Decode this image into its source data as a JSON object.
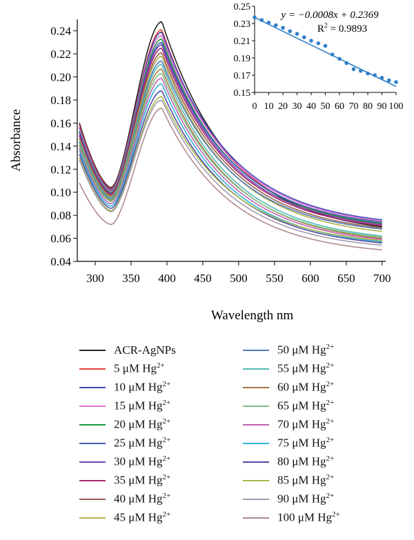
{
  "chart_data": [
    {
      "type": "line",
      "title": "",
      "xlabel": "Wavelength nm",
      "ylabel": "Absorbance",
      "xlim": [
        275,
        705
      ],
      "ylim": [
        0.04,
        0.25
      ],
      "x_ticks": [
        300,
        350,
        400,
        450,
        500,
        550,
        600,
        650,
        700
      ],
      "y_ticks": [
        0.04,
        0.06,
        0.08,
        0.1,
        0.12,
        0.14,
        0.16,
        0.18,
        0.2,
        0.22,
        0.24
      ],
      "grid": false,
      "legend_position": "bottom",
      "series": [
        {
          "name": "ACR-AgNPs",
          "color": "#222222",
          "start": 0.16,
          "min": 0.104,
          "peak": 0.248,
          "end": 0.07
        },
        {
          "name": "5 μM Hg2+",
          "color": "#e8413a",
          "start": 0.158,
          "min": 0.103,
          "peak": 0.241,
          "end": 0.072
        },
        {
          "name": "10 μM Hg2+",
          "color": "#3f48b5",
          "start": 0.156,
          "min": 0.102,
          "peak": 0.239,
          "end": 0.076
        },
        {
          "name": "15 μM Hg2+",
          "color": "#e36fd2",
          "start": 0.155,
          "min": 0.101,
          "peak": 0.236,
          "end": 0.075
        },
        {
          "name": "20 μM Hg2+",
          "color": "#1f9a3b",
          "start": 0.153,
          "min": 0.1,
          "peak": 0.233,
          "end": 0.073
        },
        {
          "name": "25 μM Hg2+",
          "color": "#3b5bb5",
          "start": 0.152,
          "min": 0.099,
          "peak": 0.23,
          "end": 0.074
        },
        {
          "name": "30 μM Hg2+",
          "color": "#7b3fb3",
          "start": 0.15,
          "min": 0.099,
          "peak": 0.228,
          "end": 0.072
        },
        {
          "name": "35 μM Hg2+",
          "color": "#a0286a",
          "start": 0.149,
          "min": 0.098,
          "peak": 0.225,
          "end": 0.071
        },
        {
          "name": "40 μM Hg2+",
          "color": "#9a5a4a",
          "start": 0.147,
          "min": 0.097,
          "peak": 0.221,
          "end": 0.069
        },
        {
          "name": "45 μM Hg2+",
          "color": "#b3b04a",
          "start": 0.146,
          "min": 0.096,
          "peak": 0.218,
          "end": 0.066
        },
        {
          "name": "50 μM Hg2+",
          "color": "#4a7ab8",
          "start": 0.144,
          "min": 0.095,
          "peak": 0.214,
          "end": 0.068
        },
        {
          "name": "55 μM Hg2+",
          "color": "#4fb8b3",
          "start": 0.143,
          "min": 0.094,
          "peak": 0.211,
          "end": 0.062
        },
        {
          "name": "60 μM Hg2+",
          "color": "#a6783f",
          "start": 0.141,
          "min": 0.093,
          "peak": 0.207,
          "end": 0.06
        },
        {
          "name": "65 μM Hg2+",
          "color": "#7fc08a",
          "start": 0.14,
          "min": 0.092,
          "peak": 0.203,
          "end": 0.061
        },
        {
          "name": "70 μM Hg2+",
          "color": "#c060b0",
          "start": 0.138,
          "min": 0.09,
          "peak": 0.199,
          "end": 0.059
        },
        {
          "name": "75 μM Hg2+",
          "color": "#2fb0d8",
          "start": 0.136,
          "min": 0.088,
          "peak": 0.194,
          "end": 0.057
        },
        {
          "name": "80 μM Hg2+",
          "color": "#4d4aa8",
          "start": 0.133,
          "min": 0.086,
          "peak": 0.188,
          "end": 0.056
        },
        {
          "name": "85 μM Hg2+",
          "color": "#a8b84a",
          "start": 0.13,
          "min": 0.084,
          "peak": 0.183,
          "end": 0.058
        },
        {
          "name": "90 μM Hg2+",
          "color": "#a39ab0",
          "start": 0.128,
          "min": 0.083,
          "peak": 0.18,
          "end": 0.054
        },
        {
          "name": "100 μM Hg2+",
          "color": "#b08a8a",
          "start": 0.108,
          "min": 0.072,
          "peak": 0.173,
          "end": 0.05
        }
      ]
    },
    {
      "type": "scatter",
      "inset": true,
      "xlabel": "",
      "ylabel": "",
      "xlim": [
        0,
        100
      ],
      "ylim": [
        0.15,
        0.25
      ],
      "x_ticks": [
        0,
        10,
        20,
        30,
        40,
        50,
        60,
        70,
        80,
        90,
        100
      ],
      "y_ticks": [
        0.15,
        0.17,
        0.19,
        0.21,
        0.23,
        0.25
      ],
      "grid": false,
      "equation": "y = −0.0008x + 0.2369",
      "r_squared": "R2 = 0.9893",
      "fit": {
        "slope": -0.0008,
        "intercept": 0.2369
      },
      "point_color": "#2f7fc9",
      "points": [
        [
          0,
          0.237
        ],
        [
          5,
          0.234
        ],
        [
          10,
          0.231
        ],
        [
          15,
          0.228
        ],
        [
          20,
          0.225
        ],
        [
          25,
          0.221
        ],
        [
          30,
          0.218
        ],
        [
          35,
          0.214
        ],
        [
          40,
          0.21
        ],
        [
          45,
          0.207
        ],
        [
          50,
          0.204
        ],
        [
          55,
          0.194
        ],
        [
          60,
          0.189
        ],
        [
          65,
          0.184
        ],
        [
          70,
          0.177
        ],
        [
          75,
          0.175
        ],
        [
          80,
          0.172
        ],
        [
          85,
          0.17
        ],
        [
          90,
          0.167
        ],
        [
          95,
          0.164
        ],
        [
          100,
          0.162
        ]
      ]
    }
  ]
}
